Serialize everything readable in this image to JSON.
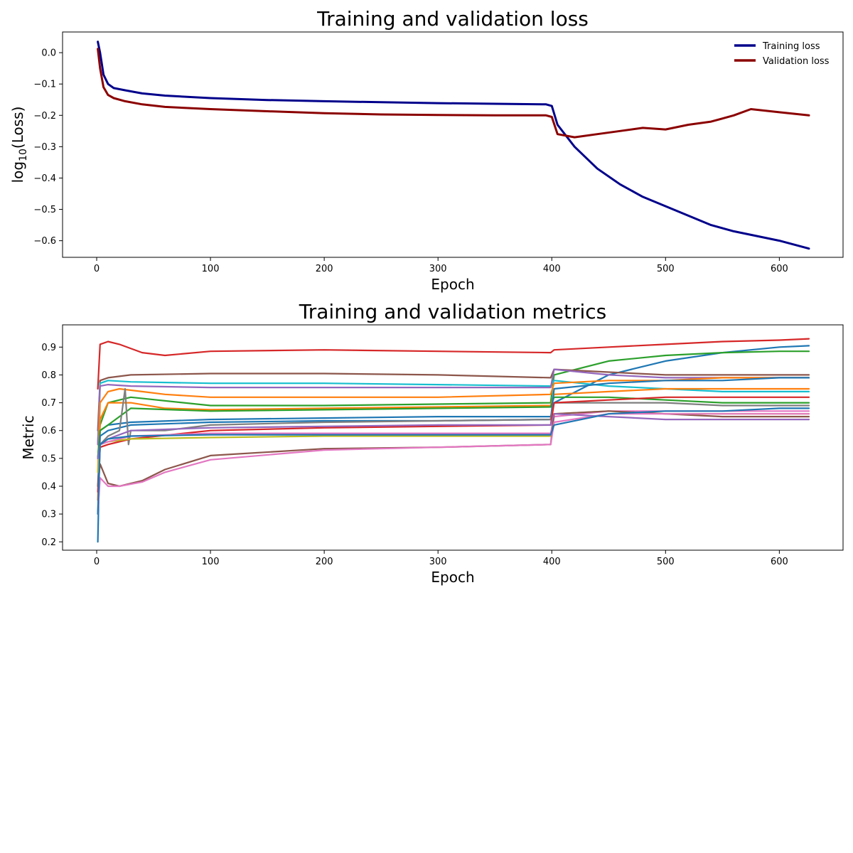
{
  "chart_data": [
    {
      "type": "line",
      "title": "Training and validation loss",
      "xlabel": "Epoch",
      "ylabel": "log10(Loss)",
      "xlim": [
        -30,
        656
      ],
      "ylim": [
        -0.653,
        0.066
      ],
      "xticks": [
        0,
        100,
        200,
        300,
        400,
        500,
        600
      ],
      "yticks": [
        0.0,
        -0.1,
        -0.2,
        -0.3,
        -0.4,
        -0.5,
        -0.6
      ],
      "xtick_labels": [
        "0",
        "100",
        "200",
        "300",
        "400",
        "500",
        "600"
      ],
      "ytick_labels": [
        "0.0",
        "−0.1",
        "−0.2",
        "−0.3",
        "−0.4",
        "−0.5",
        "−0.6"
      ],
      "grid": false,
      "legend": "top-right",
      "series": [
        {
          "name": "Training loss",
          "color": "#00008b",
          "x": [
            1,
            3,
            6,
            10,
            15,
            25,
            40,
            60,
            100,
            150,
            200,
            250,
            300,
            350,
            395,
            400,
            405,
            420,
            440,
            460,
            480,
            500,
            520,
            540,
            560,
            580,
            600,
            626
          ],
          "y": [
            0.035,
            0.0,
            -0.07,
            -0.1,
            -0.113,
            -0.12,
            -0.13,
            -0.137,
            -0.145,
            -0.151,
            -0.155,
            -0.158,
            -0.161,
            -0.163,
            -0.165,
            -0.17,
            -0.23,
            -0.3,
            -0.37,
            -0.42,
            -0.46,
            -0.49,
            -0.52,
            -0.55,
            -0.57,
            -0.585,
            -0.6,
            -0.625
          ]
        },
        {
          "name": "Validation loss",
          "color": "#8b0000",
          "x": [
            1,
            3,
            6,
            10,
            15,
            25,
            40,
            60,
            100,
            150,
            200,
            250,
            300,
            350,
            395,
            400,
            405,
            420,
            440,
            460,
            480,
            500,
            520,
            540,
            560,
            575,
            600,
            626
          ],
          "y": [
            0.012,
            -0.05,
            -0.11,
            -0.135,
            -0.145,
            -0.155,
            -0.165,
            -0.173,
            -0.18,
            -0.187,
            -0.193,
            -0.197,
            -0.199,
            -0.2,
            -0.2,
            -0.205,
            -0.26,
            -0.27,
            -0.26,
            -0.25,
            -0.24,
            -0.245,
            -0.23,
            -0.22,
            -0.2,
            -0.18,
            -0.19,
            -0.2
          ]
        }
      ]
    },
    {
      "type": "line",
      "title": "Training and validation metrics",
      "xlabel": "Epoch",
      "ylabel": "Metric",
      "xlim": [
        -30,
        656
      ],
      "ylim": [
        0.17,
        0.98
      ],
      "xticks": [
        0,
        100,
        200,
        300,
        400,
        500,
        600
      ],
      "yticks": [
        0.2,
        0.3,
        0.4,
        0.5,
        0.6,
        0.7,
        0.8,
        0.9
      ],
      "xtick_labels": [
        "0",
        "100",
        "200",
        "300",
        "400",
        "500",
        "600"
      ],
      "ytick_labels": [
        "0.2",
        "0.3",
        "0.4",
        "0.5",
        "0.6",
        "0.7",
        "0.8",
        "0.9"
      ],
      "grid": false,
      "series": [
        {
          "color": "#1f77b4",
          "x": [
            1,
            3,
            10,
            30,
            100,
            200,
            300,
            399,
            402,
            450,
            500,
            550,
            600,
            626
          ],
          "y": [
            0.2,
            0.6,
            0.62,
            0.63,
            0.64,
            0.645,
            0.65,
            0.65,
            0.7,
            0.8,
            0.85,
            0.88,
            0.9,
            0.905
          ]
        },
        {
          "color": "#d62728",
          "x": [
            1,
            3,
            10,
            20,
            40,
            60,
            100,
            200,
            300,
            399,
            402,
            450,
            500,
            550,
            600,
            626
          ],
          "y": [
            0.75,
            0.91,
            0.92,
            0.91,
            0.88,
            0.87,
            0.885,
            0.89,
            0.885,
            0.88,
            0.89,
            0.9,
            0.91,
            0.92,
            0.925,
            0.93
          ]
        },
        {
          "color": "#2ca02c",
          "x": [
            1,
            3,
            10,
            30,
            100,
            200,
            300,
            399,
            402,
            450,
            500,
            550,
            600,
            626
          ],
          "y": [
            0.5,
            0.62,
            0.7,
            0.72,
            0.69,
            0.69,
            0.695,
            0.7,
            0.8,
            0.85,
            0.87,
            0.88,
            0.885,
            0.885
          ]
        },
        {
          "color": "#8c564b",
          "x": [
            1,
            3,
            10,
            30,
            100,
            200,
            300,
            399,
            402,
            450,
            500,
            550,
            600,
            626
          ],
          "y": [
            0.6,
            0.78,
            0.79,
            0.8,
            0.805,
            0.805,
            0.8,
            0.79,
            0.82,
            0.81,
            0.8,
            0.8,
            0.8,
            0.8
          ]
        },
        {
          "color": "#17becf",
          "x": [
            1,
            3,
            10,
            30,
            100,
            200,
            300,
            399,
            402,
            450,
            500,
            550,
            600,
            626
          ],
          "y": [
            0.55,
            0.77,
            0.78,
            0.775,
            0.77,
            0.77,
            0.765,
            0.76,
            0.78,
            0.76,
            0.75,
            0.74,
            0.74,
            0.74
          ]
        },
        {
          "color": "#9467bd",
          "x": [
            1,
            3,
            10,
            30,
            100,
            200,
            300,
            399,
            402,
            450,
            500,
            550,
            600,
            626
          ],
          "y": [
            0.55,
            0.76,
            0.765,
            0.76,
            0.755,
            0.755,
            0.755,
            0.755,
            0.82,
            0.8,
            0.79,
            0.79,
            0.79,
            0.79
          ]
        },
        {
          "color": "#ff7f0e",
          "x": [
            1,
            3,
            10,
            20,
            40,
            60,
            100,
            200,
            300,
            399,
            402,
            450,
            500,
            550,
            600,
            626
          ],
          "y": [
            0.45,
            0.7,
            0.74,
            0.75,
            0.74,
            0.73,
            0.72,
            0.72,
            0.72,
            0.73,
            0.77,
            0.78,
            0.78,
            0.79,
            0.79,
            0.79
          ]
        },
        {
          "color": "#ff7f0e",
          "x": [
            1,
            3,
            10,
            30,
            60,
            100,
            200,
            300,
            399,
            402,
            450,
            500,
            550,
            600,
            626
          ],
          "y": [
            0.35,
            0.64,
            0.7,
            0.7,
            0.68,
            0.675,
            0.68,
            0.685,
            0.69,
            0.73,
            0.74,
            0.75,
            0.75,
            0.75,
            0.75
          ]
        },
        {
          "color": "#2ca02c",
          "x": [
            1,
            3,
            10,
            30,
            100,
            200,
            300,
            399,
            402,
            450,
            500,
            550,
            600,
            626
          ],
          "y": [
            0.5,
            0.6,
            0.62,
            0.68,
            0.67,
            0.675,
            0.68,
            0.685,
            0.72,
            0.72,
            0.71,
            0.7,
            0.7,
            0.7
          ]
        },
        {
          "color": "#1f77b4",
          "x": [
            1,
            3,
            10,
            30,
            100,
            200,
            300,
            399,
            402,
            450,
            500,
            550,
            600,
            626
          ],
          "y": [
            0.4,
            0.58,
            0.6,
            0.62,
            0.63,
            0.635,
            0.635,
            0.64,
            0.75,
            0.77,
            0.78,
            0.78,
            0.79,
            0.79
          ]
        },
        {
          "color": "#7f7f7f",
          "x": [
            1,
            3,
            10,
            20,
            25,
            28,
            30,
            60,
            100,
            200,
            300,
            399,
            402,
            450,
            500,
            550,
            600,
            626
          ],
          "y": [
            0.5,
            0.55,
            0.58,
            0.6,
            0.75,
            0.55,
            0.6,
            0.6,
            0.62,
            0.63,
            0.635,
            0.64,
            0.7,
            0.7,
            0.7,
            0.69,
            0.69,
            0.69
          ]
        },
        {
          "color": "#d62728",
          "x": [
            1,
            3,
            10,
            30,
            100,
            200,
            300,
            399,
            402,
            450,
            500,
            550,
            600,
            626
          ],
          "y": [
            0.38,
            0.54,
            0.55,
            0.57,
            0.6,
            0.61,
            0.615,
            0.62,
            0.7,
            0.71,
            0.72,
            0.72,
            0.72,
            0.72
          ]
        },
        {
          "color": "#bcbd22",
          "x": [
            1,
            3,
            10,
            30,
            100,
            200,
            300,
            399,
            402,
            450,
            500,
            550,
            600,
            626
          ],
          "y": [
            0.45,
            0.55,
            0.56,
            0.57,
            0.575,
            0.58,
            0.58,
            0.58,
            0.66,
            0.67,
            0.66,
            0.66,
            0.66,
            0.66
          ]
        },
        {
          "color": "#e377c2",
          "x": [
            1,
            3,
            10,
            30,
            100,
            200,
            300,
            399,
            402,
            450,
            500,
            550,
            600,
            626
          ],
          "y": [
            0.3,
            0.55,
            0.56,
            0.58,
            0.59,
            0.59,
            0.59,
            0.59,
            0.65,
            0.67,
            0.67,
            0.67,
            0.67,
            0.67
          ]
        },
        {
          "color": "#8c564b",
          "x": [
            1,
            3,
            10,
            20,
            40,
            60,
            100,
            200,
            300,
            399,
            402,
            450,
            500,
            550,
            600,
            626
          ],
          "y": [
            0.4,
            0.48,
            0.41,
            0.4,
            0.42,
            0.46,
            0.51,
            0.535,
            0.54,
            0.55,
            0.66,
            0.67,
            0.66,
            0.65,
            0.65,
            0.65
          ]
        },
        {
          "color": "#e377c2",
          "x": [
            1,
            3,
            10,
            20,
            40,
            60,
            100,
            200,
            300,
            399,
            402,
            450,
            500,
            550,
            600,
            626
          ],
          "y": [
            0.3,
            0.43,
            0.4,
            0.4,
            0.415,
            0.45,
            0.495,
            0.53,
            0.54,
            0.55,
            0.63,
            0.66,
            0.66,
            0.66,
            0.66,
            0.66
          ]
        },
        {
          "color": "#9467bd",
          "x": [
            1,
            3,
            10,
            30,
            100,
            200,
            300,
            399,
            402,
            450,
            500,
            550,
            600,
            626
          ],
          "y": [
            0.5,
            0.55,
            0.57,
            0.6,
            0.61,
            0.615,
            0.62,
            0.62,
            0.66,
            0.65,
            0.64,
            0.64,
            0.64,
            0.64
          ]
        },
        {
          "color": "#1f77b4",
          "x": [
            1,
            3,
            10,
            30,
            100,
            200,
            300,
            399,
            402,
            450,
            500,
            550,
            600,
            626
          ],
          "y": [
            0.3,
            0.55,
            0.57,
            0.58,
            0.585,
            0.585,
            0.585,
            0.585,
            0.62,
            0.66,
            0.67,
            0.67,
            0.68,
            0.68
          ]
        }
      ]
    }
  ]
}
